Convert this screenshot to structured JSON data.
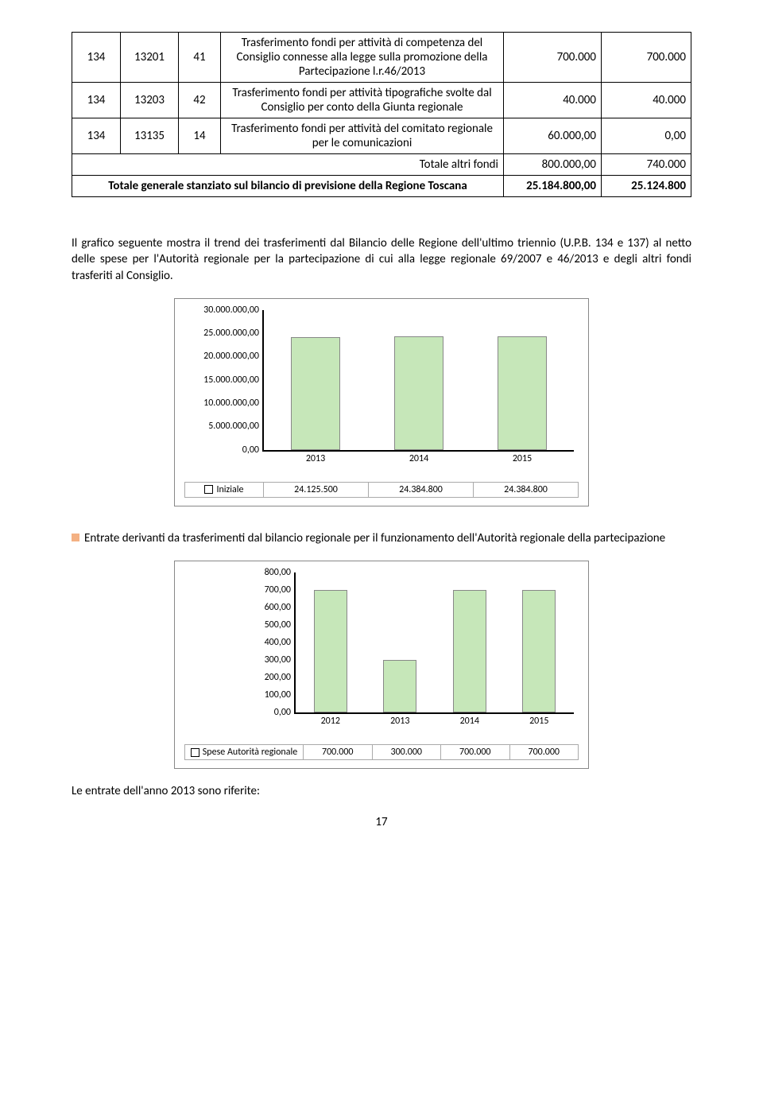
{
  "table": {
    "rows": [
      {
        "c0": "134",
        "c1": "13201",
        "c2": "41",
        "desc": "Trasferimento fondi per  attività di competenza del Consiglio connesse alla legge sulla promozione della Partecipazione l.r.46/2013",
        "v1": "700.000",
        "v2": "700.000"
      },
      {
        "c0": "134",
        "c1": "13203",
        "c2": "42",
        "desc": "Trasferimento fondi per attività tipografiche svolte dal Consiglio per conto della Giunta regionale",
        "v1": "40.000",
        "v2": "40.000"
      },
      {
        "c0": "134",
        "c1": "13135",
        "c2": "14",
        "desc": "Trasferimento fondi per attività del comitato regionale per le comunicazioni",
        "v1": "60.000,00",
        "v2": "0,00"
      }
    ],
    "totAltri": {
      "label": "Totale altri fondi",
      "v1": "800.000,00",
      "v2": "740.000"
    },
    "totGen": {
      "label": "Totale generale stanziato sul bilancio di previsione della Regione Toscana",
      "v1": "25.184.800,00",
      "v2": "25.124.800"
    }
  },
  "para1": "Il grafico seguente mostra il trend dei trasferimenti dal Bilancio delle Regione dell'ultimo triennio (U.P.B. 134 e 137) al netto delle spese per l'Autorità regionale per la partecipazione di cui alla legge regionale 69/2007 e 46/2013 e degli altri fondi trasferiti al Consiglio.",
  "chart1": {
    "type": "bar",
    "ymax": 30000000,
    "ystep": 5000000,
    "yticks": [
      "0,00",
      "5.000.000,00",
      "10.000.000,00",
      "15.000.000,00",
      "20.000.000,00",
      "25.000.000,00",
      "30.000.000,00"
    ],
    "cats": [
      "2013",
      "2014",
      "2015"
    ],
    "vals": [
      24125500,
      24384800,
      24384800
    ],
    "val_labels": [
      "24.125.500",
      "24.384.800",
      "24.384.800"
    ],
    "legend": "Iniziale",
    "bar_color": "#c6e7b9",
    "bar_width": 0.48
  },
  "para2": "Entrate derivanti da trasferimenti dal bilancio regionale per il funzionamento dell'Autorità regionale della partecipazione",
  "chart2": {
    "type": "bar",
    "ymax": 800,
    "ystep": 100,
    "yticks": [
      "0,00",
      "100,00",
      "200,00",
      "300,00",
      "400,00",
      "500,00",
      "600,00",
      "700,00",
      "800,00"
    ],
    "cats": [
      "2012",
      "2013",
      "2014",
      "2015"
    ],
    "vals": [
      700,
      300,
      700,
      700
    ],
    "val_labels": [
      "700.000",
      "300.000",
      "700.000",
      "700.000"
    ],
    "legend": "Spese Autorità regionale",
    "bar_color": "#c6e7b9",
    "bar_width": 0.48
  },
  "para3": "Le entrate dell'anno 2013 sono riferite:",
  "pagenum": "17"
}
